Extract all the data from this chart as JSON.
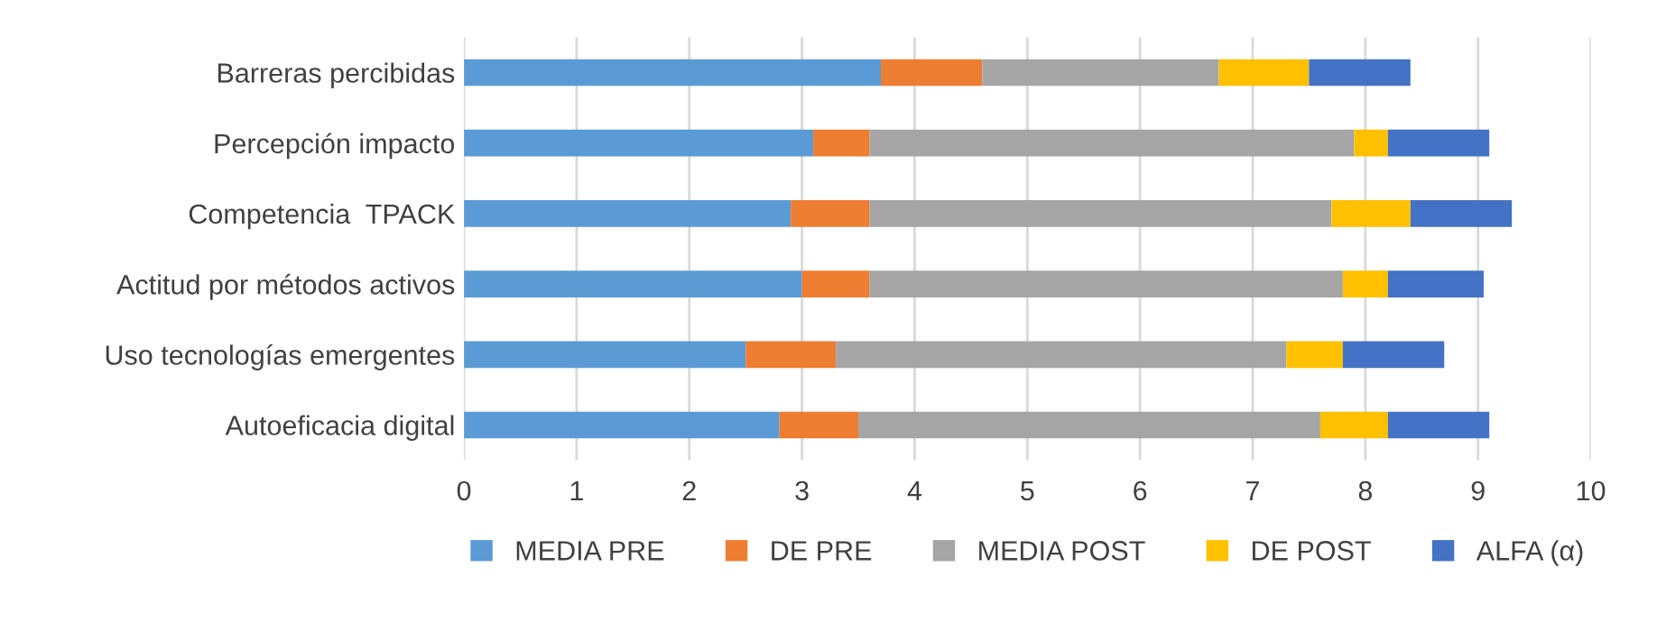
{
  "chart_data": {
    "type": "bar",
    "orientation": "horizontal",
    "stacked": true,
    "categories": [
      "Barreras percibidas",
      "Percepción impacto",
      "Competencia  TPACK",
      "Actitud por métodos activos",
      "Uso tecnologías emergentes",
      "Autoeficacia digital"
    ],
    "series": [
      {
        "name": "MEDIA PRE",
        "color": "#5b9bd5",
        "values": [
          3.7,
          3.1,
          2.9,
          3.0,
          2.5,
          2.8
        ]
      },
      {
        "name": "DE PRE",
        "color": "#ed7d31",
        "values": [
          0.9,
          0.5,
          0.7,
          0.6,
          0.8,
          0.7
        ]
      },
      {
        "name": "MEDIA POST",
        "color": "#a5a5a5",
        "values": [
          2.1,
          4.3,
          4.1,
          4.2,
          4.0,
          4.1
        ]
      },
      {
        "name": "DE POST",
        "color": "#ffc000",
        "values": [
          0.8,
          0.3,
          0.7,
          0.4,
          0.5,
          0.6
        ]
      },
      {
        "name": "ALFA (α)",
        "color": "#4472c4",
        "values": [
          0.9,
          0.9,
          0.9,
          0.85,
          0.9,
          0.9
        ]
      }
    ],
    "xlim": [
      0,
      10
    ],
    "xticks": [
      0,
      1,
      2,
      3,
      4,
      5,
      6,
      7,
      8,
      9,
      10
    ],
    "grid": "x",
    "legend": "bottom"
  }
}
